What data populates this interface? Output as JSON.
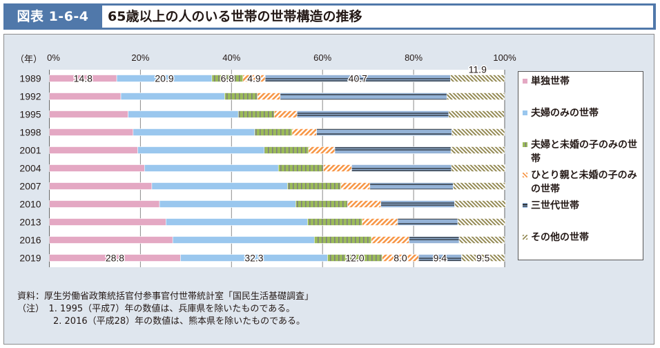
{
  "header": {
    "figure_label": "図表 1-6-4",
    "title": "65歳以上の人のいる世帯の世帯構造の推移"
  },
  "chart_data": {
    "type": "bar",
    "orientation": "horizontal",
    "stacked": true,
    "percent": true,
    "title": "65歳以上の人のいる世帯の世帯構造の推移",
    "ylabel": "（年）",
    "xlabel": "",
    "xlim": [
      0,
      100
    ],
    "x_ticks": [
      "0%",
      "20%",
      "40%",
      "60%",
      "80%",
      "100%"
    ],
    "grid": true,
    "legend_position": "right",
    "categories": [
      "1989",
      "1992",
      "1995",
      "1998",
      "2001",
      "2004",
      "2007",
      "2010",
      "2013",
      "2016",
      "2019"
    ],
    "series": [
      {
        "name": "単独世帯",
        "color": "#e4a8c3",
        "pattern": "solid",
        "values": [
          14.8,
          15.7,
          17.3,
          18.4,
          19.4,
          20.9,
          22.5,
          24.2,
          25.6,
          27.1,
          28.8
        ]
      },
      {
        "name": "夫婦のみの世帯",
        "color": "#9ac7ee",
        "pattern": "solid",
        "values": [
          20.9,
          22.8,
          24.2,
          26.7,
          27.8,
          29.4,
          29.8,
          29.9,
          31.1,
          31.1,
          32.3
        ]
      },
      {
        "name": "夫婦と未婚の子のみの世帯",
        "color": "#9bbb59",
        "pattern": "vertical",
        "values": [
          6.8,
          7.2,
          7.9,
          8.2,
          9.7,
          9.9,
          11.7,
          11.4,
          12.0,
          12.5,
          12.0
        ]
      },
      {
        "name": "ひとり親と未婚の子のみの世帯",
        "color": "#f79646",
        "pattern": "diagonal",
        "values": [
          4.9,
          5.0,
          5.0,
          5.4,
          5.8,
          6.2,
          6.4,
          7.3,
          7.8,
          8.3,
          8.0
        ]
      },
      {
        "name": "三世代世帯",
        "color": "#95b3d7",
        "pattern": "horizontal-lines",
        "values": [
          40.7,
          36.6,
          33.3,
          29.7,
          25.5,
          21.9,
          18.3,
          16.2,
          13.2,
          11.0,
          9.4
        ]
      },
      {
        "name": "その他の世帯",
        "color": "#948a54",
        "pattern": "zigzag",
        "values": [
          11.9,
          12.7,
          12.2,
          11.6,
          11.8,
          11.8,
          11.4,
          11.2,
          10.4,
          10.0,
          9.5
        ]
      }
    ],
    "data_labels": {
      "1989": [
        "14.8",
        "20.9",
        "6.8",
        "4.9",
        "40.7",
        "11.9"
      ],
      "2019": [
        "28.8",
        "32.3",
        "12.0",
        "8.0",
        "9.4",
        "9.5"
      ]
    }
  },
  "notes": {
    "source": "資料：厚生労働省政策統括官付参事官付世帯統計室「国民生活基礎調査」",
    "note1": "（注）　1. 1995（平成7）年の数値は、兵庫県を除いたものである。",
    "note2": "　　　　2. 2016（平成28）年の数値は、熊本県を除いたものである。"
  }
}
